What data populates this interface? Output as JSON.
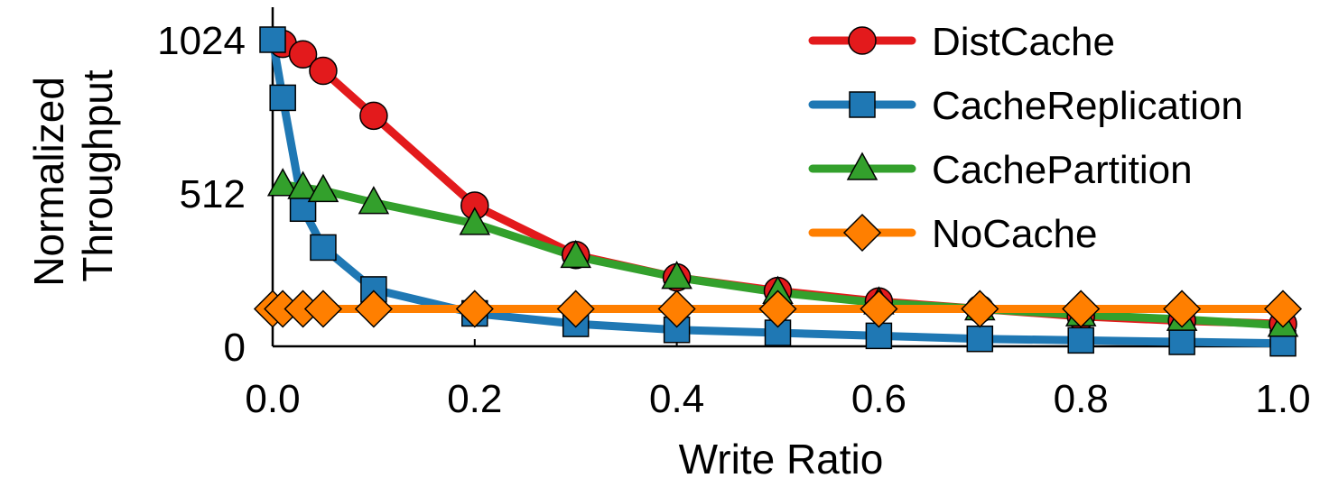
{
  "chart_data": {
    "type": "line",
    "xlabel": "Write Ratio",
    "ylabel_lines": [
      "Normalized",
      "Throughput"
    ],
    "xlim": [
      0.0,
      1.0
    ],
    "ylim": [
      0,
      1024
    ],
    "x_ticks": [
      "0.0",
      "0.2",
      "0.4",
      "0.6",
      "0.8",
      "1.0"
    ],
    "x_tick_values": [
      0.0,
      0.2,
      0.4,
      0.6,
      0.8,
      1.0
    ],
    "y_ticks": [
      "0",
      "512",
      "1024"
    ],
    "y_tick_values": [
      0,
      512,
      1024
    ],
    "grid": false,
    "legend_position": "top-right",
    "series": [
      {
        "name": "DistCache",
        "color": "#e31a1c",
        "marker": "circle",
        "x": [
          0.01,
          0.03,
          0.05,
          0.1,
          0.2,
          0.3,
          0.4,
          0.5,
          0.6,
          0.7,
          0.8,
          0.9,
          1.0
        ],
        "values": [
          1010,
          975,
          920,
          770,
          470,
          305,
          230,
          185,
          150,
          125,
          100,
          85,
          75
        ]
      },
      {
        "name": "CacheReplication",
        "color": "#1f78b4",
        "marker": "square",
        "x": [
          0.0,
          0.01,
          0.03,
          0.05,
          0.1,
          0.2,
          0.3,
          0.4,
          0.5,
          0.6,
          0.7,
          0.8,
          0.9,
          1.0
        ],
        "values": [
          1024,
          830,
          460,
          330,
          190,
          110,
          75,
          55,
          45,
          35,
          25,
          20,
          15,
          10
        ]
      },
      {
        "name": "CachePartition",
        "color": "#33a02c",
        "marker": "triangle",
        "x": [
          0.01,
          0.03,
          0.05,
          0.1,
          0.2,
          0.3,
          0.4,
          0.5,
          0.6,
          0.7,
          0.8,
          0.9,
          1.0
        ],
        "values": [
          540,
          530,
          520,
          480,
          410,
          300,
          230,
          180,
          145,
          125,
          105,
          90,
          70
        ]
      },
      {
        "name": "NoCache",
        "color": "#ff7f00",
        "marker": "diamond",
        "x": [
          0.0,
          0.01,
          0.03,
          0.05,
          0.1,
          0.2,
          0.3,
          0.4,
          0.5,
          0.6,
          0.7,
          0.8,
          0.9,
          1.0
        ],
        "values": [
          125,
          125,
          125,
          125,
          125,
          125,
          125,
          125,
          125,
          125,
          125,
          125,
          125,
          125
        ]
      }
    ]
  }
}
